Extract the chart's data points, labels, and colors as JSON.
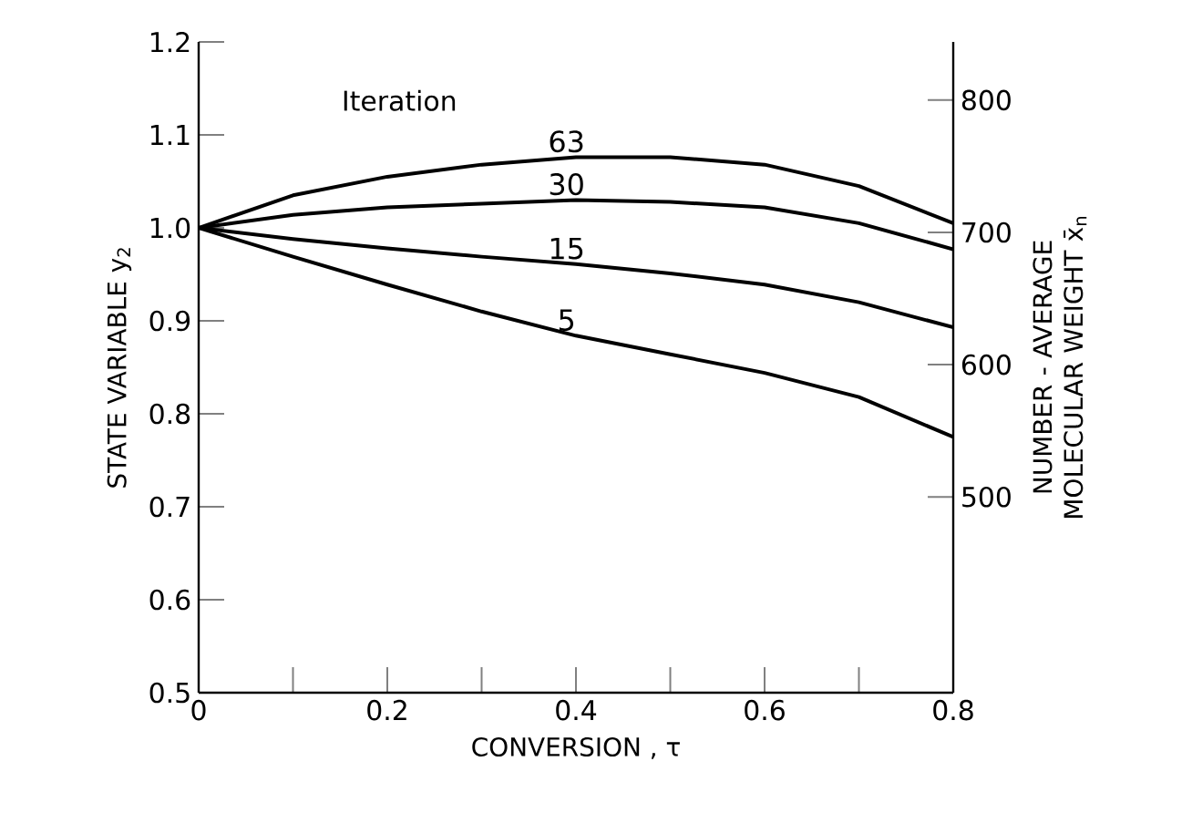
{
  "chart_data": {
    "type": "line",
    "xlabel": "CONVERSION , τ",
    "ylabel": "STATE  VARIABLE  y$_{2}$",
    "y2label": "NUMBER - AVERAGE MOLECULAR WEIGHT x̄$_{n}$",
    "annotations": [
      "Iteration"
    ],
    "x": [
      0,
      0.1,
      0.2,
      0.3,
      0.4,
      0.5,
      0.6,
      0.7,
      0.8
    ],
    "series": [
      {
        "name": "63",
        "color": "#000000",
        "values": [
          1.0,
          1.035,
          1.055,
          1.068,
          1.076,
          1.076,
          1.068,
          1.045,
          1.005
        ]
      },
      {
        "name": "30",
        "color": "#000000",
        "values": [
          1.0,
          1.014,
          1.022,
          1.026,
          1.03,
          1.028,
          1.022,
          1.005,
          0.977
        ]
      },
      {
        "name": "15",
        "color": "#000000",
        "values": [
          1.0,
          0.988,
          0.978,
          0.969,
          0.961,
          0.951,
          0.939,
          0.92,
          0.893
        ]
      },
      {
        "name": "5",
        "color": "#000000",
        "values": [
          1.0,
          0.969,
          0.939,
          0.91,
          0.884,
          0.864,
          0.844,
          0.818,
          0.775
        ]
      }
    ],
    "xlim": [
      0,
      0.8
    ],
    "xticks": [
      0,
      {
        "value": 0.1,
        "label": null
      },
      0.2,
      {
        "value": 0.3,
        "label": null
      },
      0.4,
      {
        "value": 0.5,
        "label": null
      },
      0.6,
      {
        "value": 0.7,
        "label": null
      },
      0.8
    ],
    "ylim": [
      0.5,
      1.2
    ],
    "yticks": [
      0.5,
      0.6,
      0.7,
      0.8,
      0.9,
      {
        "value": 1.0,
        "label": "1.0"
      },
      1.1,
      1.2
    ],
    "y2lim": [
      352,
      844
    ],
    "y2ticks": [
      500,
      600,
      700,
      800
    ],
    "grid": false,
    "line_style": "solid"
  }
}
